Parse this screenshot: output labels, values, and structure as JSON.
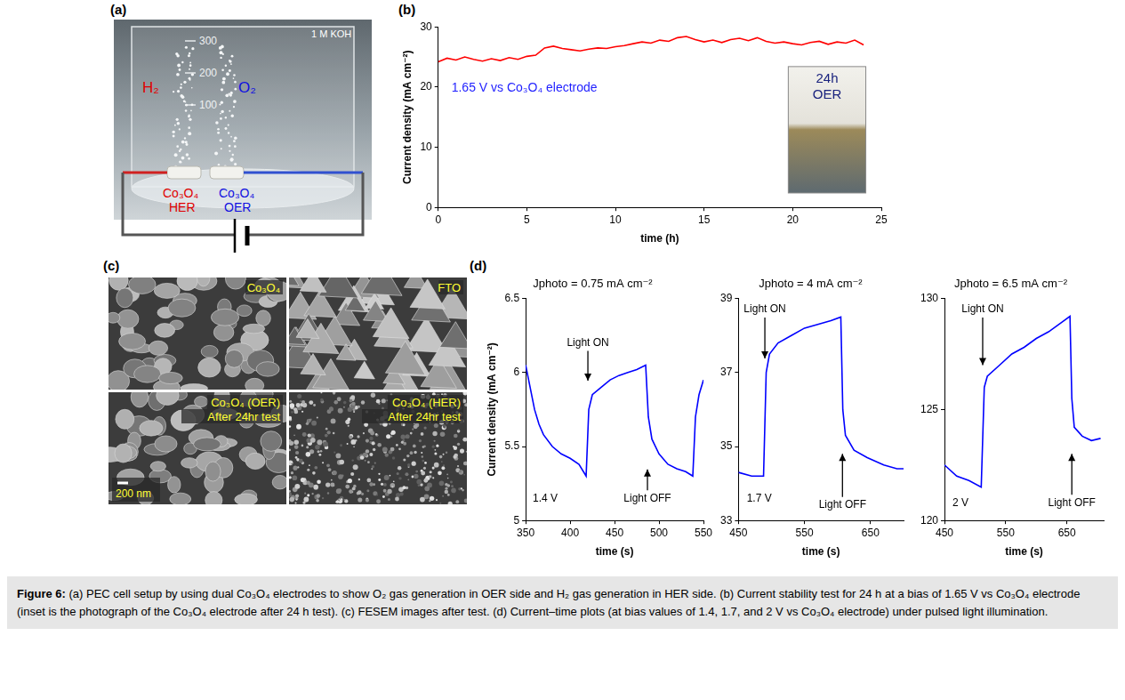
{
  "panel_a": {
    "letter": "(a)",
    "beaker_marks": [
      "300",
      "200",
      "100"
    ],
    "electrolyte": "1 M KOH",
    "gas_left": "H₂",
    "gas_right": "O₂",
    "electrode_left": [
      "Co₃O₄",
      "HER"
    ],
    "electrode_right": [
      "Co₃O₄",
      "OER"
    ]
  },
  "panel_c": {
    "letter": "(c)",
    "images": [
      {
        "label": [
          "Co₃O₄"
        ]
      },
      {
        "label": [
          "FTO"
        ]
      },
      {
        "label": [
          "Co₃O₄ (OER)",
          "After 24hr test"
        ]
      },
      {
        "label": [
          "Co₃O₄ (HER)",
          "After 24hr test"
        ]
      }
    ],
    "scale_bar": "200 nm"
  },
  "chart_data": [
    {
      "panel": "(b)",
      "type": "line",
      "xlabel": "time (h)",
      "ylabel": "Current density (mA cm⁻²)",
      "annotation": "1.65 V vs Co₃O₄ electrode",
      "inset_text": [
        "24h",
        "OER"
      ],
      "x": [
        0,
        0.5,
        1,
        1.5,
        2,
        2.5,
        3,
        3.5,
        4,
        4.5,
        5,
        5.5,
        6,
        6.5,
        7,
        7.5,
        8,
        8.5,
        9,
        9.5,
        10,
        10.5,
        11,
        11.5,
        12,
        12.5,
        13,
        13.5,
        14,
        14.5,
        15,
        15.5,
        16,
        16.5,
        17,
        17.5,
        18,
        18.5,
        19,
        19.5,
        20,
        20.5,
        21,
        21.5,
        22,
        22.5,
        23,
        23.5,
        24
      ],
      "values": [
        24.2,
        24.8,
        24.5,
        25.0,
        24.6,
        24.3,
        24.7,
        24.4,
        24.9,
        24.6,
        25.1,
        25.3,
        26.5,
        26.8,
        26.4,
        26.2,
        26.0,
        26.3,
        26.5,
        26.4,
        26.7,
        26.9,
        27.2,
        27.5,
        27.3,
        27.8,
        27.6,
        28.2,
        28.4,
        27.9,
        27.5,
        27.8,
        27.4,
        27.9,
        28.1,
        27.7,
        28.2,
        27.6,
        27.3,
        27.5,
        27.2,
        27.0,
        27.4,
        27.6,
        27.1,
        27.5,
        27.3,
        27.8,
        27.0
      ],
      "color": "#ff0000",
      "xlim": [
        0,
        25
      ],
      "xticks": [
        0,
        5,
        10,
        15,
        20,
        25
      ],
      "ylim": [
        0,
        30
      ],
      "yticks": [
        0,
        10,
        20,
        30
      ],
      "grid": false
    },
    {
      "panel": "(d)",
      "type": "line",
      "title": "Jphoto = 0.75 mA cm⁻²",
      "xlabel": "time (s)",
      "ylabel": "Current density (mA cm⁻²)",
      "bias": "1.4 V",
      "light_on": "Light ON",
      "light_off": "Light OFF",
      "x": [
        350,
        355,
        360,
        365,
        370,
        380,
        390,
        400,
        410,
        418,
        421,
        425,
        435,
        445,
        455,
        465,
        475,
        485,
        488,
        492,
        500,
        510,
        520,
        530,
        538,
        541,
        545,
        550
      ],
      "values": [
        6.05,
        5.9,
        5.75,
        5.65,
        5.58,
        5.5,
        5.45,
        5.42,
        5.38,
        5.3,
        5.75,
        5.85,
        5.9,
        5.95,
        5.98,
        6.0,
        6.02,
        6.05,
        5.7,
        5.55,
        5.45,
        5.38,
        5.35,
        5.33,
        5.3,
        5.7,
        5.85,
        5.95
      ],
      "color": "#0000ff",
      "xlim": [
        350,
        550
      ],
      "xticks": [
        350,
        400,
        450,
        500,
        550
      ],
      "ylim": [
        5,
        6.5
      ],
      "yticks": [
        5,
        5.5,
        6,
        6.5
      ],
      "grid": false
    },
    {
      "type": "line",
      "title": "Jphoto = 4 mA cm⁻²",
      "xlabel": "time (s)",
      "bias": "1.7 V",
      "light_on": "Light ON",
      "light_off": "Light OFF",
      "x": [
        450,
        470,
        488,
        492,
        497,
        510,
        530,
        550,
        570,
        590,
        605,
        608,
        612,
        625,
        645,
        670,
        690,
        700
      ],
      "values": [
        34.3,
        34.2,
        34.2,
        37.0,
        37.5,
        37.8,
        38.0,
        38.2,
        38.3,
        38.4,
        38.5,
        36.0,
        35.3,
        34.9,
        34.7,
        34.5,
        34.4,
        34.4
      ],
      "color": "#0000ff",
      "xlim": [
        450,
        700
      ],
      "xticks": [
        450,
        550,
        650
      ],
      "ylim": [
        33,
        39
      ],
      "yticks": [
        33,
        35,
        37,
        39
      ],
      "grid": false
    },
    {
      "type": "line",
      "title": "Jphoto = 6.5 mA cm⁻²",
      "xlabel": "time (s)",
      "bias": "2 V",
      "light_on": "Light ON",
      "light_off": "Light OFF",
      "x": [
        450,
        470,
        490,
        510,
        515,
        520,
        540,
        560,
        580,
        600,
        620,
        640,
        655,
        658,
        662,
        675,
        690,
        705
      ],
      "values": [
        122.5,
        122.0,
        121.8,
        121.5,
        126.0,
        126.5,
        127.0,
        127.5,
        127.8,
        128.2,
        128.5,
        128.9,
        129.2,
        125.5,
        124.2,
        123.8,
        123.6,
        123.7
      ],
      "color": "#0000ff",
      "xlim": [
        450,
        710
      ],
      "xticks": [
        450,
        550,
        650
      ],
      "ylim": [
        120,
        130
      ],
      "yticks": [
        120,
        125,
        130
      ],
      "grid": false
    }
  ],
  "caption": {
    "label": "Figure 6:",
    "text": "(a) PEC cell setup by using dual Co₃O₄ electrodes to show O₂ gas generation in OER side and H₂ gas generation in HER side. (b) Current stability test for 24 h at a bias of 1.65 V vs Co₃O₄ electrode (inset is the photograph of the Co₃O₄ electrode after 24 h test). (c) FESEM images after test. (d) Current–time plots (at bias values of 1.4, 1.7, and 2 V vs Co₃O₄ electrode) under pulsed light illumination."
  }
}
